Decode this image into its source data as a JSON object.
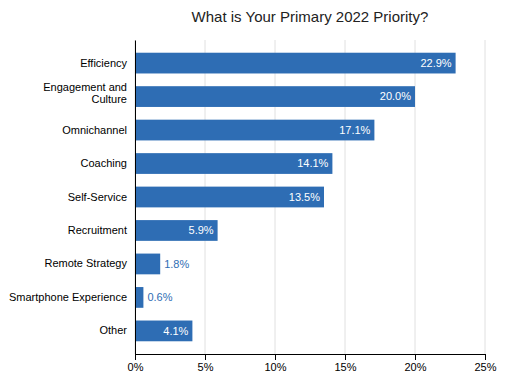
{
  "chart_data": {
    "type": "bar",
    "orientation": "horizontal",
    "title": "What is Your Primary 2022 Priority?",
    "categories": [
      "Other",
      "Smartphone Experience",
      "Remote Strategy",
      "Recruitment",
      "Self-Service",
      "Coaching",
      "Omnichannel",
      "Engagement and\nCulture",
      "Efficiency"
    ],
    "values": [
      4.1,
      0.6,
      1.8,
      5.9,
      13.5,
      14.1,
      17.1,
      20.0,
      22.9
    ],
    "value_labels": [
      "4.1%",
      "0.6%",
      "1.8%",
      "5.9%",
      "13.5%",
      "14.1%",
      "17.1%",
      "20.0%",
      "22.9%"
    ],
    "data_labels": true,
    "color": "#2E6DB4",
    "xlim": [
      0,
      25
    ],
    "xticks": [
      {
        "value": 0,
        "label": "0%"
      },
      {
        "value": 5,
        "label": "5%"
      },
      {
        "value": 10,
        "label": "10%"
      },
      {
        "value": 15,
        "label": "15%"
      },
      {
        "value": 20,
        "label": "20%"
      },
      {
        "value": 25,
        "label": "25%"
      }
    ],
    "grid": true
  }
}
